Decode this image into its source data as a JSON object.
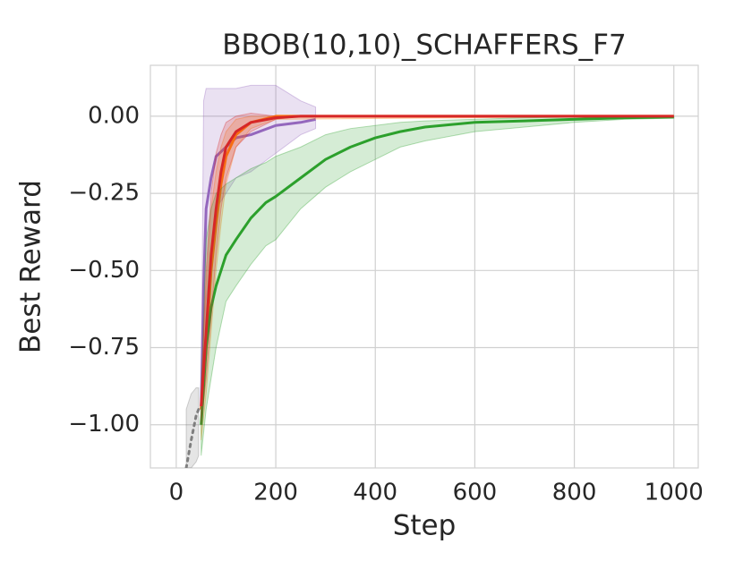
{
  "chart_data": {
    "type": "line",
    "title": "BBOB(10,10)_SCHAFFERS_F7",
    "x_label": "Step",
    "y_label": "Best Reward",
    "xlim": [
      -52,
      1049
    ],
    "ylim": [
      -1.14,
      0.165
    ],
    "xticks": [
      0,
      200,
      400,
      600,
      800,
      1000
    ],
    "yticks": [
      {
        "value": -1,
        "label": "−1.00"
      },
      {
        "value": -0.75,
        "label": "−0.75"
      },
      {
        "value": -0.5,
        "label": "−0.50"
      },
      {
        "value": -0.25,
        "label": "−0.25"
      },
      {
        "value": 0,
        "label": "0.00"
      }
    ],
    "grid": true,
    "series": [
      {
        "color": "#7f7f7f",
        "style": "dotted",
        "x": [
          20,
          30,
          40,
          45
        ],
        "values": [
          -1.14,
          -1.05,
          -0.97,
          -0.95
        ],
        "lower": [
          -1.14,
          -1.14,
          -1.12,
          -1.1
        ],
        "upper": [
          -0.95,
          -0.9,
          -0.88,
          -0.88
        ]
      },
      {
        "color": "#9467bd",
        "style": "solid",
        "x": [
          50,
          55,
          60,
          70,
          80,
          100,
          120,
          150,
          200,
          250,
          280
        ],
        "values": [
          -0.95,
          -0.55,
          -0.3,
          -0.2,
          -0.13,
          -0.1,
          -0.07,
          -0.06,
          -0.03,
          -0.02,
          -0.01
        ],
        "lower": [
          -1.0,
          -0.85,
          -0.6,
          -0.45,
          -0.3,
          -0.25,
          -0.2,
          -0.18,
          -0.12,
          -0.06,
          -0.04
        ],
        "upper": [
          -0.9,
          0.05,
          0.09,
          0.09,
          0.09,
          0.09,
          0.09,
          0.1,
          0.1,
          0.05,
          0.03
        ]
      },
      {
        "color": "#ff7f0e",
        "style": "solid",
        "x": [
          50,
          60,
          70,
          80,
          90,
          100,
          120,
          150,
          200,
          1000
        ],
        "values": [
          -0.95,
          -0.75,
          -0.5,
          -0.35,
          -0.22,
          -0.13,
          -0.06,
          -0.02,
          0,
          0
        ],
        "lower": [
          -1.05,
          -0.9,
          -0.7,
          -0.5,
          -0.35,
          -0.22,
          -0.1,
          -0.04,
          -0.01,
          0
        ],
        "upper": [
          -0.9,
          -0.55,
          -0.3,
          -0.18,
          -0.1,
          -0.05,
          -0.01,
          0,
          0,
          0
        ]
      },
      {
        "color": "#2ca02c",
        "style": "solid",
        "x": [
          50,
          60,
          70,
          80,
          100,
          120,
          150,
          180,
          200,
          250,
          300,
          350,
          400,
          450,
          500,
          600,
          700,
          800,
          900,
          1000
        ],
        "values": [
          -1.0,
          -0.75,
          -0.62,
          -0.55,
          -0.45,
          -0.4,
          -0.33,
          -0.28,
          -0.26,
          -0.2,
          -0.14,
          -0.1,
          -0.07,
          -0.05,
          -0.035,
          -0.02,
          -0.015,
          -0.01,
          -0.005,
          -0.003
        ],
        "lower": [
          -1.1,
          -0.95,
          -0.85,
          -0.75,
          -0.6,
          -0.55,
          -0.48,
          -0.42,
          -0.4,
          -0.3,
          -0.23,
          -0.18,
          -0.14,
          -0.1,
          -0.08,
          -0.05,
          -0.035,
          -0.02,
          -0.01,
          -0.006
        ],
        "upper": [
          -0.9,
          -0.4,
          -0.3,
          -0.25,
          -0.22,
          -0.2,
          -0.17,
          -0.15,
          -0.13,
          -0.1,
          -0.06,
          -0.04,
          -0.03,
          -0.02,
          -0.015,
          -0.01,
          -0.005,
          -0.003,
          -0.001,
          0
        ]
      },
      {
        "color": "#d62728",
        "style": "solid",
        "x": [
          50,
          60,
          70,
          80,
          90,
          100,
          120,
          150,
          200,
          250,
          1000
        ],
        "values": [
          -0.94,
          -0.7,
          -0.45,
          -0.3,
          -0.18,
          -0.1,
          -0.05,
          -0.02,
          -0.005,
          0,
          0
        ],
        "lower": [
          -1.0,
          -0.85,
          -0.65,
          -0.45,
          -0.3,
          -0.2,
          -0.1,
          -0.05,
          -0.01,
          0,
          0
        ],
        "upper": [
          -0.9,
          -0.5,
          -0.25,
          -0.12,
          -0.06,
          -0.02,
          0,
          0.01,
          0,
          0,
          0
        ]
      }
    ]
  }
}
